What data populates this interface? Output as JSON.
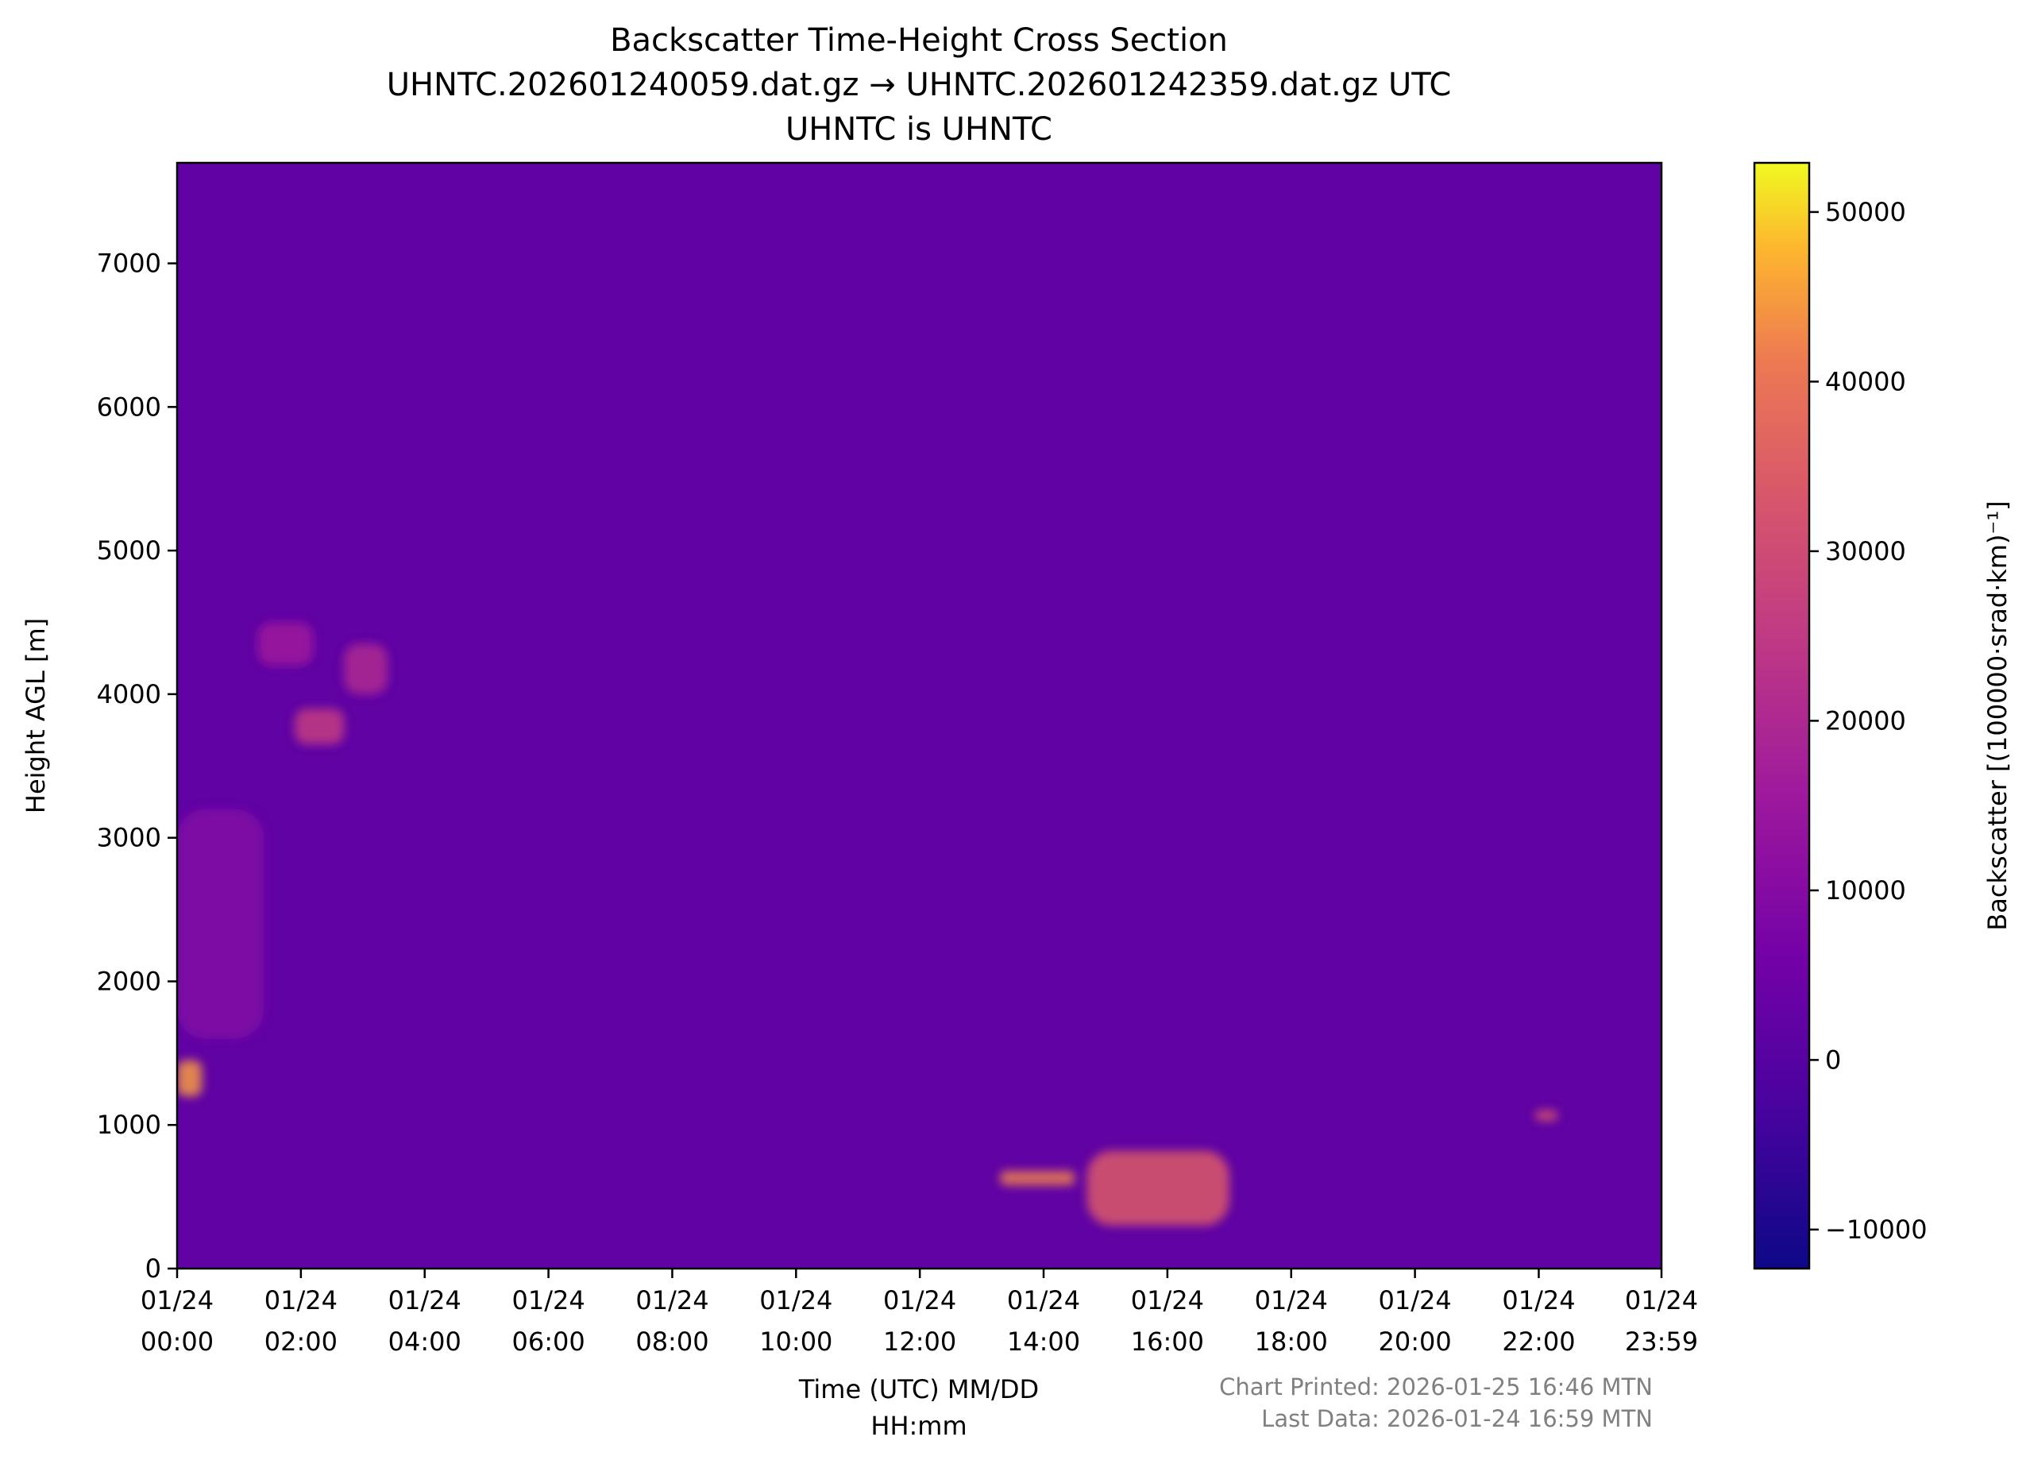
{
  "chart_data": {
    "type": "heatmap",
    "title": [
      "Backscatter Time-Height Cross Section",
      "UHNTC.202601240059.dat.gz → UHNTC.202601242359.dat.gz UTC",
      "UHNTC is UHNTC"
    ],
    "xlabel": [
      "Time (UTC) MM/DD",
      "HH:mm"
    ],
    "ylabel": "Height AGL [m]",
    "colorbar_label": "Backscatter [(100000·srad·km)⁻¹]",
    "colormap": "plasma",
    "xlim_hours": [
      0,
      23.983
    ],
    "ylim": [
      0,
      7700
    ],
    "clim": [
      -12300,
      52900
    ],
    "x_ticks": [
      {
        "hours": 0,
        "label": [
          "01/24",
          "00:00"
        ]
      },
      {
        "hours": 2,
        "label": [
          "01/24",
          "02:00"
        ]
      },
      {
        "hours": 4,
        "label": [
          "01/24",
          "04:00"
        ]
      },
      {
        "hours": 6,
        "label": [
          "01/24",
          "06:00"
        ]
      },
      {
        "hours": 8,
        "label": [
          "01/24",
          "08:00"
        ]
      },
      {
        "hours": 10,
        "label": [
          "01/24",
          "10:00"
        ]
      },
      {
        "hours": 12,
        "label": [
          "01/24",
          "12:00"
        ]
      },
      {
        "hours": 14,
        "label": [
          "01/24",
          "14:00"
        ]
      },
      {
        "hours": 16,
        "label": [
          "01/24",
          "16:00"
        ]
      },
      {
        "hours": 18,
        "label": [
          "01/24",
          "18:00"
        ]
      },
      {
        "hours": 20,
        "label": [
          "01/24",
          "20:00"
        ]
      },
      {
        "hours": 22,
        "label": [
          "01/24",
          "22:00"
        ]
      },
      {
        "hours": 23.983,
        "label": [
          "01/24",
          "23:59"
        ]
      }
    ],
    "y_ticks": [
      0,
      1000,
      2000,
      3000,
      4000,
      5000,
      6000,
      7000
    ],
    "colorbar_ticks": [
      -10000,
      0,
      10000,
      20000,
      30000,
      40000,
      50000
    ],
    "background_value": 2000,
    "features": [
      {
        "t0": 0.0,
        "t1": 0.4,
        "h0": 1200,
        "h1": 1450,
        "value": 45000
      },
      {
        "t0": 0.0,
        "t1": 1.4,
        "h0": 1600,
        "h1": 3200,
        "value": 9000
      },
      {
        "t0": 1.3,
        "t1": 2.2,
        "h0": 4200,
        "h1": 4500,
        "value": 16000
      },
      {
        "t0": 1.9,
        "t1": 2.7,
        "h0": 3650,
        "h1": 3900,
        "value": 26000
      },
      {
        "t0": 2.7,
        "t1": 3.4,
        "h0": 4000,
        "h1": 4350,
        "value": 20000
      },
      {
        "t0": 13.3,
        "t1": 14.5,
        "h0": 580,
        "h1": 680,
        "value": 42000
      },
      {
        "t0": 14.7,
        "t1": 17.0,
        "h0": 300,
        "h1": 820,
        "value": 34000
      },
      {
        "t0": 21.95,
        "t1": 22.3,
        "h0": 1030,
        "h1": 1100,
        "value": 34000
      }
    ]
  },
  "footer": {
    "printed": "Chart Printed: 2026-01-25 16:46 MTN",
    "last_data": "Last Data: 2026-01-24 16:59 MTN"
  }
}
